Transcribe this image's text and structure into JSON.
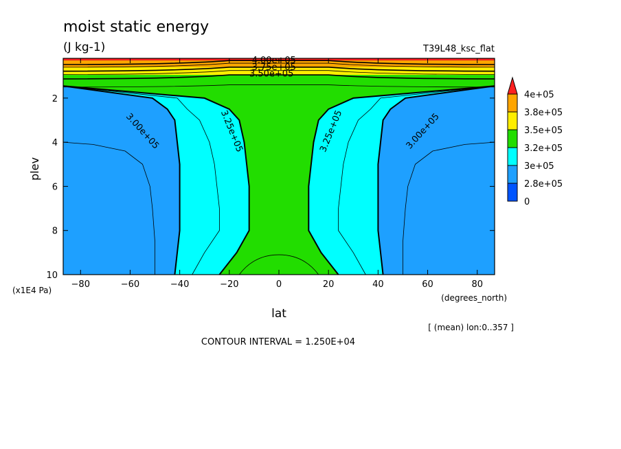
{
  "header": {
    "title": "moist static energy",
    "units": "(J kg-1)",
    "run_name": "T39L48_ksc_flat"
  },
  "footer": {
    "mean_note": "[ (mean) lon:0..357 ]",
    "contour_interval": "CONTOUR INTERVAL = 1.250E+04"
  },
  "colors": {
    "c0": "#0055ff",
    "c1": "#1ea0ff",
    "c2": "#00ffff",
    "c3": "#22dd00",
    "c4": "#ffee00",
    "c5": "#ffa500",
    "c6": "#ff2020"
  },
  "chart_data": {
    "type": "contour",
    "title": "moist static energy",
    "subtitle": "(J kg-1)",
    "xlabel": "lat",
    "xunits": "(degrees_north)",
    "ylabel": "plev",
    "yunits": "(x1E4 Pa)",
    "xlim": [
      -87,
      87
    ],
    "ylim": [
      10,
      0.2
    ],
    "xticks": [
      -80,
      -60,
      -40,
      -20,
      0,
      20,
      40,
      60,
      80
    ],
    "yticks": [
      2,
      4,
      6,
      8,
      10
    ],
    "contour_interval": 12500,
    "colorbar": {
      "labels": [
        "4e+05",
        "3.8e+05",
        "3.5e+05",
        "3.2e+05",
        "3e+05",
        "2.8e+05",
        "0"
      ]
    },
    "contour_labels": [
      {
        "text": "4.00e+05",
        "lat": -2,
        "plev": 0.3
      },
      {
        "text": "3.75e+05",
        "lat": -2,
        "plev": 0.6
      },
      {
        "text": "3.50e+05",
        "lat": -3,
        "plev": 0.9
      },
      {
        "text": "3.00e+05",
        "lat": -55,
        "plev": 3.5
      },
      {
        "text": "3.25e+05",
        "lat": -19,
        "plev": 3.5
      },
      {
        "text": "3.25e+05",
        "lat": 21,
        "plev": 3.5
      },
      {
        "text": "3.00e+05",
        "lat": 58,
        "plev": 3.5
      }
    ],
    "profile": {
      "plev": [
        2.0,
        2.5,
        3.0,
        4.0,
        5.0,
        6.0,
        7.0,
        8.0,
        9.0,
        10.0
      ],
      "lat_325": [
        30,
        20,
        16,
        14,
        13,
        12,
        12,
        12,
        17,
        24
      ],
      "lat_3125": [
        41,
        37,
        32,
        28,
        26,
        25,
        24,
        24,
        30,
        35
      ],
      "lat_300": [
        51,
        45,
        42,
        41,
        40,
        40,
        40,
        40,
        41,
        42
      ]
    },
    "notes": [
      "[ (mean) lon:0..357 ]",
      "CONTOUR INTERVAL = 1.250E+04"
    ]
  }
}
